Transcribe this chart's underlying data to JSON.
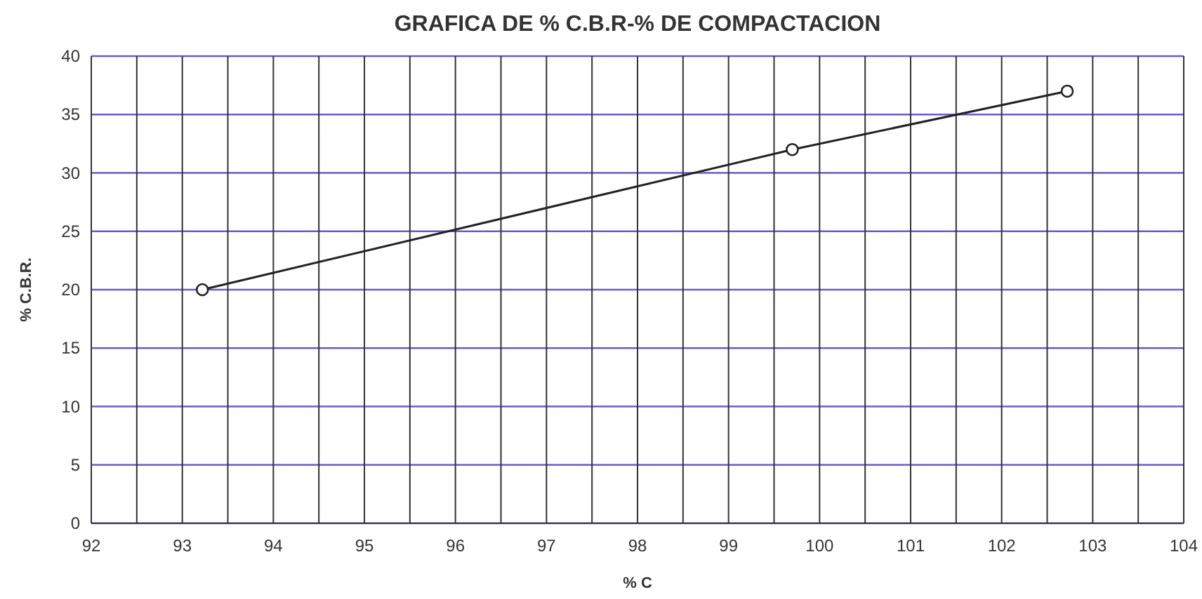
{
  "chart_data": {
    "type": "line",
    "title": "GRAFICA DE % C.B.R-% DE COMPACTACION",
    "xlabel": "% C",
    "ylabel": "% C.B.R.",
    "x": [
      93.22,
      99.7,
      102.72
    ],
    "series": [
      {
        "color": "#222222",
        "values": [
          20,
          32,
          37
        ]
      }
    ],
    "xlim": [
      92,
      104
    ],
    "xticks": [
      92,
      {
        "value": 92.5,
        "label": null
      },
      93,
      {
        "value": 93.5,
        "label": null
      },
      94,
      {
        "value": 94.5,
        "label": null
      },
      95,
      {
        "value": 95.5,
        "label": null
      },
      96,
      {
        "value": 96.5,
        "label": null
      },
      97,
      {
        "value": 97.5,
        "label": null
      },
      98,
      {
        "value": 98.5,
        "label": null
      },
      99,
      {
        "value": 99.5,
        "label": null
      },
      100,
      {
        "value": 100.5,
        "label": null
      },
      101,
      {
        "value": 101.5,
        "label": null
      },
      102,
      {
        "value": 102.5,
        "label": null
      },
      103,
      {
        "value": 103.5,
        "label": null
      },
      104
    ],
    "ylim": [
      0,
      40
    ],
    "yticks": [
      0,
      5,
      10,
      15,
      20,
      25,
      30,
      35,
      40
    ],
    "grid": true,
    "marker": "circle",
    "line_style": "solid"
  }
}
